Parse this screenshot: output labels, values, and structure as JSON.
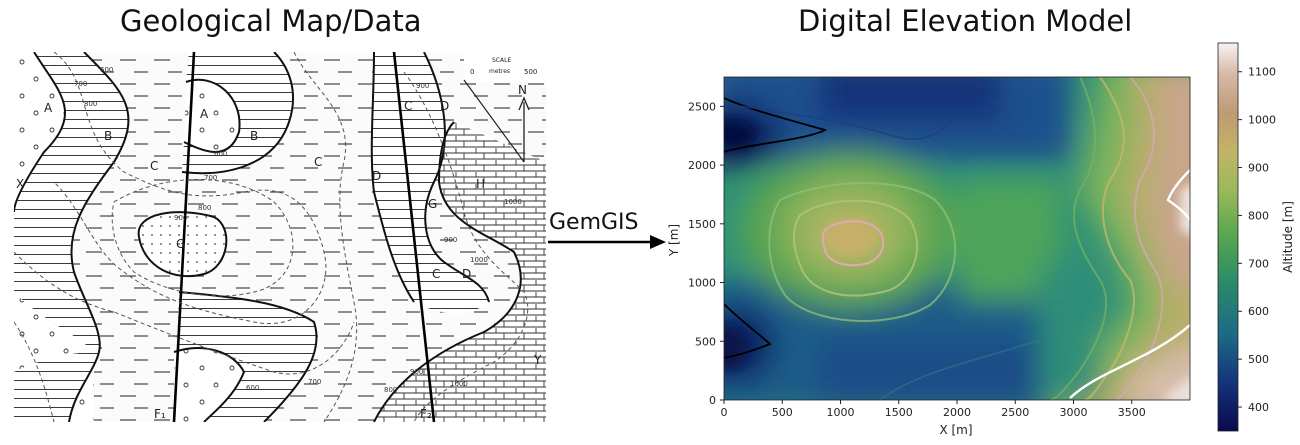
{
  "titles": {
    "left": "Geological Map/Data",
    "right": "Digital Elevation Model"
  },
  "arrow_label": "GemGIS",
  "geomap": {
    "unit_labels": [
      {
        "id": "a1",
        "text": "A"
      },
      {
        "id": "a2",
        "text": "A"
      },
      {
        "id": "b1",
        "text": "B"
      },
      {
        "id": "b2",
        "text": "B"
      },
      {
        "id": "c1",
        "text": "C"
      },
      {
        "id": "c2",
        "text": "C"
      },
      {
        "id": "c3",
        "text": "C"
      },
      {
        "id": "c4",
        "text": "C"
      },
      {
        "id": "d1",
        "text": "D"
      },
      {
        "id": "d2",
        "text": "D"
      },
      {
        "id": "d3",
        "text": "D"
      },
      {
        "id": "g1",
        "text": "G"
      },
      {
        "id": "g2",
        "text": "G"
      },
      {
        "id": "h1",
        "text": "H"
      },
      {
        "id": "x1",
        "text": "X"
      },
      {
        "id": "y1",
        "text": "Y"
      }
    ],
    "fault_labels": [
      "F₁",
      "F₂"
    ],
    "contour_labels": [
      "600",
      "700",
      "800",
      "900",
      "600",
      "700",
      "800",
      "900",
      "1000",
      "900",
      "1000",
      "600",
      "700",
      "800",
      "900",
      "1000"
    ],
    "scale": {
      "label": "SCALE",
      "units": "metres",
      "start": "0",
      "end": "500"
    },
    "north": "N"
  },
  "chart_data": {
    "type": "heatmap",
    "title": "Digital Elevation Model",
    "xlabel": "X [m]",
    "ylabel": "Y [m]",
    "xlim": [
      0,
      4000
    ],
    "ylim": [
      0,
      2750
    ],
    "xticks": [
      "0",
      "500",
      "1000",
      "1500",
      "2000",
      "2500",
      "3000",
      "3500"
    ],
    "yticks": [
      "0",
      "500",
      "1000",
      "1500",
      "2000",
      "2500"
    ],
    "colorbar": {
      "label": "Altitude [m]",
      "range": [
        350,
        1160
      ],
      "ticks": [
        "400",
        "500",
        "600",
        "700",
        "800",
        "900",
        "1000",
        "1100"
      ],
      "colormap": "gist_earth"
    },
    "colors": {
      "low": "#0b1a5e",
      "mid_low": "#1b6f8a",
      "mid": "#4fa85a",
      "mid_high": "#b9b060",
      "high": "#c9a58c",
      "peak": "#f3ece8"
    }
  }
}
